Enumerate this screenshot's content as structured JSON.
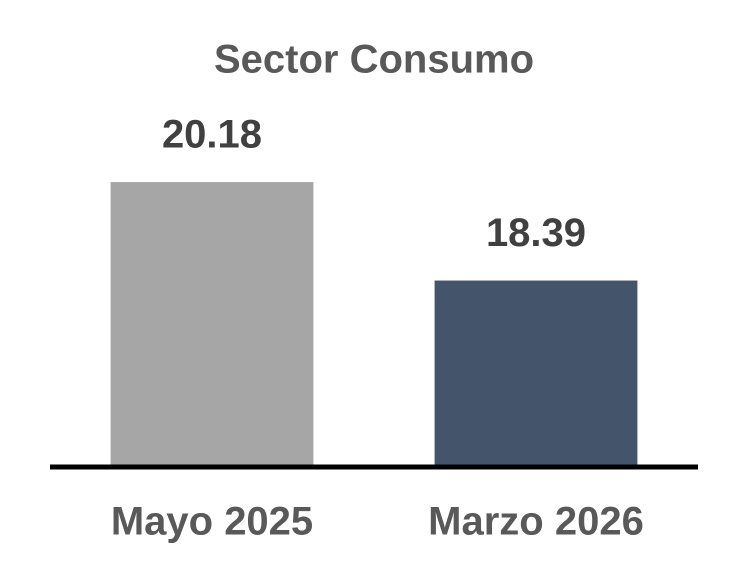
{
  "chart_data": {
    "type": "bar",
    "title": "Sector Consumo",
    "categories": [
      "Mayo 2025",
      "Marzo 2026"
    ],
    "values": [
      20.18,
      18.39
    ],
    "colors": [
      "#a6a6a6",
      "#44546a"
    ],
    "ylim": [
      15,
      21
    ]
  }
}
